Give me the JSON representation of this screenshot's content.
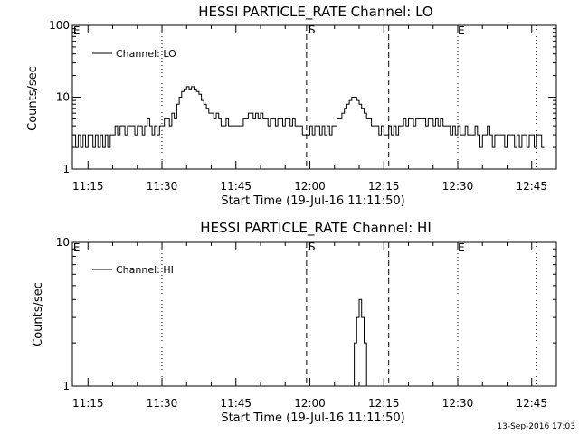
{
  "footer": {
    "timestamp": "13-Sep-2016 17:03"
  },
  "colors": {
    "background": "#ffffff",
    "foreground": "#000000"
  },
  "chart_data": [
    {
      "type": "line",
      "title": "HESSI PARTICLE_RATE Channel: LO",
      "xlabel": "Start Time (19-Jul-16 11:11:50)",
      "ylabel": "Counts/sec",
      "y_scale": "log",
      "ylim": [
        1,
        100
      ],
      "y_ticks": [
        1,
        10,
        100
      ],
      "y_tick_labels": [
        "1",
        "10",
        "100"
      ],
      "xlim": [
        "11:11:50",
        "12:50:00"
      ],
      "x_ticks": [
        "11:15",
        "11:30",
        "11:45",
        "12:00",
        "12:15",
        "12:30",
        "12:45"
      ],
      "legend": {
        "position": "top-left",
        "entries": [
          "Channel: LO"
        ]
      },
      "markers": [
        {
          "time": "11:30:00",
          "style": "dotted",
          "label": ""
        },
        {
          "time": "11:59:20",
          "style": "dashed",
          "label": "S"
        },
        {
          "time": "12:16:00",
          "style": "dashed",
          "label": ""
        },
        {
          "time": "12:30:00",
          "style": "dotted",
          "label": ""
        },
        {
          "time": "12:46:00",
          "style": "dotted",
          "label": ""
        }
      ],
      "edge_labels": [
        {
          "time": "11:12:00",
          "label": "E"
        },
        {
          "time": "12:30:00",
          "label": "E"
        }
      ],
      "series": [
        {
          "name": "Channel: LO",
          "points": [
            [
              "11:12:00",
              3
            ],
            [
              "11:12:30",
              2
            ],
            [
              "11:13:00",
              3
            ],
            [
              "11:13:30",
              2
            ],
            [
              "11:14:00",
              3
            ],
            [
              "11:14:30",
              2
            ],
            [
              "11:15:00",
              3
            ],
            [
              "11:15:30",
              3
            ],
            [
              "11:16:00",
              2
            ],
            [
              "11:16:30",
              3
            ],
            [
              "11:17:00",
              2
            ],
            [
              "11:17:30",
              3
            ],
            [
              "11:18:00",
              2
            ],
            [
              "11:18:30",
              3
            ],
            [
              "11:19:00",
              2
            ],
            [
              "11:19:30",
              3
            ],
            [
              "11:20:00",
              3
            ],
            [
              "11:20:30",
              4
            ],
            [
              "11:21:00",
              3
            ],
            [
              "11:21:30",
              4
            ],
            [
              "11:22:00",
              4
            ],
            [
              "11:22:30",
              3
            ],
            [
              "11:23:00",
              4
            ],
            [
              "11:23:30",
              4
            ],
            [
              "11:24:00",
              4
            ],
            [
              "11:24:30",
              3
            ],
            [
              "11:25:00",
              4
            ],
            [
              "11:25:30",
              4
            ],
            [
              "11:26:00",
              3
            ],
            [
              "11:26:30",
              4
            ],
            [
              "11:27:00",
              5
            ],
            [
              "11:27:30",
              4
            ],
            [
              "11:28:00",
              3
            ],
            [
              "11:28:30",
              4
            ],
            [
              "11:29:00",
              3
            ],
            [
              "11:29:30",
              4
            ],
            [
              "11:30:00",
              4
            ],
            [
              "11:30:30",
              5
            ],
            [
              "11:31:00",
              5
            ],
            [
              "11:31:30",
              4
            ],
            [
              "11:32:00",
              6
            ],
            [
              "11:32:30",
              5
            ],
            [
              "11:33:00",
              8
            ],
            [
              "11:33:30",
              10
            ],
            [
              "11:34:00",
              12
            ],
            [
              "11:34:30",
              13
            ],
            [
              "11:35:00",
              14
            ],
            [
              "11:35:30",
              13
            ],
            [
              "11:36:00",
              14
            ],
            [
              "11:36:30",
              13
            ],
            [
              "11:37:00",
              12
            ],
            [
              "11:37:30",
              11
            ],
            [
              "11:38:00",
              9
            ],
            [
              "11:38:30",
              8
            ],
            [
              "11:39:00",
              7
            ],
            [
              "11:39:30",
              6
            ],
            [
              "11:40:00",
              6
            ],
            [
              "11:40:30",
              5
            ],
            [
              "11:41:00",
              6
            ],
            [
              "11:41:30",
              5
            ],
            [
              "11:42:00",
              4
            ],
            [
              "11:42:30",
              4
            ],
            [
              "11:43:00",
              5
            ],
            [
              "11:43:30",
              4
            ],
            [
              "11:44:00",
              4
            ],
            [
              "11:44:30",
              4
            ],
            [
              "11:45:00",
              4
            ],
            [
              "11:45:30",
              4
            ],
            [
              "11:46:00",
              4
            ],
            [
              "11:46:30",
              5
            ],
            [
              "11:47:00",
              5
            ],
            [
              "11:47:30",
              6
            ],
            [
              "11:48:00",
              6
            ],
            [
              "11:48:30",
              5
            ],
            [
              "11:49:00",
              6
            ],
            [
              "11:49:30",
              5
            ],
            [
              "11:50:00",
              6
            ],
            [
              "11:50:30",
              5
            ],
            [
              "11:51:00",
              5
            ],
            [
              "11:51:30",
              4
            ],
            [
              "11:52:00",
              5
            ],
            [
              "11:52:30",
              5
            ],
            [
              "11:53:00",
              4
            ],
            [
              "11:53:30",
              5
            ],
            [
              "11:54:00",
              5
            ],
            [
              "11:54:30",
              4
            ],
            [
              "11:55:00",
              5
            ],
            [
              "11:55:30",
              5
            ],
            [
              "11:56:00",
              4
            ],
            [
              "11:56:30",
              5
            ],
            [
              "11:57:00",
              4
            ],
            [
              "11:57:30",
              4
            ],
            [
              "11:58:00",
              4
            ],
            [
              "11:58:30",
              3
            ],
            [
              "11:59:00",
              3
            ],
            [
              "11:59:30",
              3
            ],
            [
              "12:00:00",
              4
            ],
            [
              "12:00:30",
              3
            ],
            [
              "12:01:00",
              4
            ],
            [
              "12:01:30",
              4
            ],
            [
              "12:02:00",
              3
            ],
            [
              "12:02:30",
              4
            ],
            [
              "12:03:00",
              3
            ],
            [
              "12:03:30",
              4
            ],
            [
              "12:04:00",
              3
            ],
            [
              "12:04:30",
              4
            ],
            [
              "12:05:00",
              4
            ],
            [
              "12:05:30",
              5
            ],
            [
              "12:06:00",
              5
            ],
            [
              "12:06:30",
              6
            ],
            [
              "12:07:00",
              7
            ],
            [
              "12:07:30",
              8
            ],
            [
              "12:08:00",
              9
            ],
            [
              "12:08:30",
              10
            ],
            [
              "12:09:00",
              10
            ],
            [
              "12:09:30",
              9
            ],
            [
              "12:10:00",
              8
            ],
            [
              "12:10:30",
              7
            ],
            [
              "12:11:00",
              6
            ],
            [
              "12:11:30",
              5
            ],
            [
              "12:12:00",
              5
            ],
            [
              "12:12:30",
              4
            ],
            [
              "12:13:00",
              4
            ],
            [
              "12:13:30",
              4
            ],
            [
              "12:14:00",
              3
            ],
            [
              "12:14:30",
              4
            ],
            [
              "12:15:00",
              3
            ],
            [
              "12:15:30",
              3
            ],
            [
              "12:16:00",
              4
            ],
            [
              "12:16:30",
              3
            ],
            [
              "12:17:00",
              4
            ],
            [
              "12:17:30",
              3
            ],
            [
              "12:18:00",
              4
            ],
            [
              "12:18:30",
              4
            ],
            [
              "12:19:00",
              5
            ],
            [
              "12:19:30",
              4
            ],
            [
              "12:20:00",
              5
            ],
            [
              "12:20:30",
              5
            ],
            [
              "12:21:00",
              4
            ],
            [
              "12:21:30",
              5
            ],
            [
              "12:22:00",
              5
            ],
            [
              "12:22:30",
              5
            ],
            [
              "12:23:00",
              5
            ],
            [
              "12:23:30",
              4
            ],
            [
              "12:24:00",
              5
            ],
            [
              "12:24:30",
              5
            ],
            [
              "12:25:00",
              4
            ],
            [
              "12:25:30",
              5
            ],
            [
              "12:26:00",
              4
            ],
            [
              "12:26:30",
              5
            ],
            [
              "12:27:00",
              4
            ],
            [
              "12:27:30",
              4
            ],
            [
              "12:28:00",
              4
            ],
            [
              "12:28:30",
              3
            ],
            [
              "12:29:00",
              4
            ],
            [
              "12:29:30",
              3
            ],
            [
              "12:30:00",
              4
            ],
            [
              "12:30:30",
              3
            ],
            [
              "12:31:00",
              3
            ],
            [
              "12:31:30",
              4
            ],
            [
              "12:32:00",
              3
            ],
            [
              "12:32:30",
              3
            ],
            [
              "12:33:00",
              3
            ],
            [
              "12:33:30",
              4
            ],
            [
              "12:34:00",
              3
            ],
            [
              "12:34:30",
              2
            ],
            [
              "12:35:00",
              3
            ],
            [
              "12:35:30",
              3
            ],
            [
              "12:36:00",
              4
            ],
            [
              "12:36:30",
              3
            ],
            [
              "12:37:00",
              2
            ],
            [
              "12:37:30",
              3
            ],
            [
              "12:38:00",
              3
            ],
            [
              "12:38:30",
              3
            ],
            [
              "12:39:00",
              3
            ],
            [
              "12:39:30",
              2
            ],
            [
              "12:40:00",
              3
            ],
            [
              "12:40:30",
              3
            ],
            [
              "12:41:00",
              3
            ],
            [
              "12:41:30",
              2
            ],
            [
              "12:42:00",
              3
            ],
            [
              "12:42:30",
              2
            ],
            [
              "12:43:00",
              3
            ],
            [
              "12:43:30",
              3
            ],
            [
              "12:44:00",
              2
            ],
            [
              "12:44:30",
              3
            ],
            [
              "12:45:00",
              3
            ],
            [
              "12:45:30",
              2
            ],
            [
              "12:46:00",
              3
            ],
            [
              "12:46:30",
              3
            ],
            [
              "12:47:00",
              2
            ]
          ]
        }
      ]
    },
    {
      "type": "line",
      "title": "HESSI PARTICLE_RATE Channel: HI",
      "xlabel": "Start Time (19-Jul-16 11:11:50)",
      "ylabel": "Counts/sec",
      "y_scale": "log",
      "ylim": [
        1,
        10
      ],
      "y_ticks": [
        1,
        10
      ],
      "y_tick_labels": [
        "1",
        "10"
      ],
      "xlim": [
        "11:11:50",
        "12:50:00"
      ],
      "x_ticks": [
        "11:15",
        "11:30",
        "11:45",
        "12:00",
        "12:15",
        "12:30",
        "12:45"
      ],
      "legend": {
        "position": "top-left",
        "entries": [
          "Channel: HI"
        ]
      },
      "markers": [
        {
          "time": "11:30:00",
          "style": "dotted",
          "label": ""
        },
        {
          "time": "11:59:20",
          "style": "dashed",
          "label": "S"
        },
        {
          "time": "12:16:00",
          "style": "dashed",
          "label": ""
        },
        {
          "time": "12:30:00",
          "style": "dotted",
          "label": ""
        },
        {
          "time": "12:46:00",
          "style": "dotted",
          "label": ""
        }
      ],
      "edge_labels": [
        {
          "time": "11:12:00",
          "label": "E"
        },
        {
          "time": "12:30:00",
          "label": "E"
        }
      ],
      "series": [
        {
          "name": "Channel: HI",
          "points": [
            [
              "12:08:30",
              1
            ],
            [
              "12:09:00",
              2
            ],
            [
              "12:09:30",
              3
            ],
            [
              "12:10:00",
              4
            ],
            [
              "12:10:30",
              3
            ],
            [
              "12:11:00",
              2
            ],
            [
              "12:11:30",
              1
            ]
          ]
        }
      ]
    }
  ]
}
